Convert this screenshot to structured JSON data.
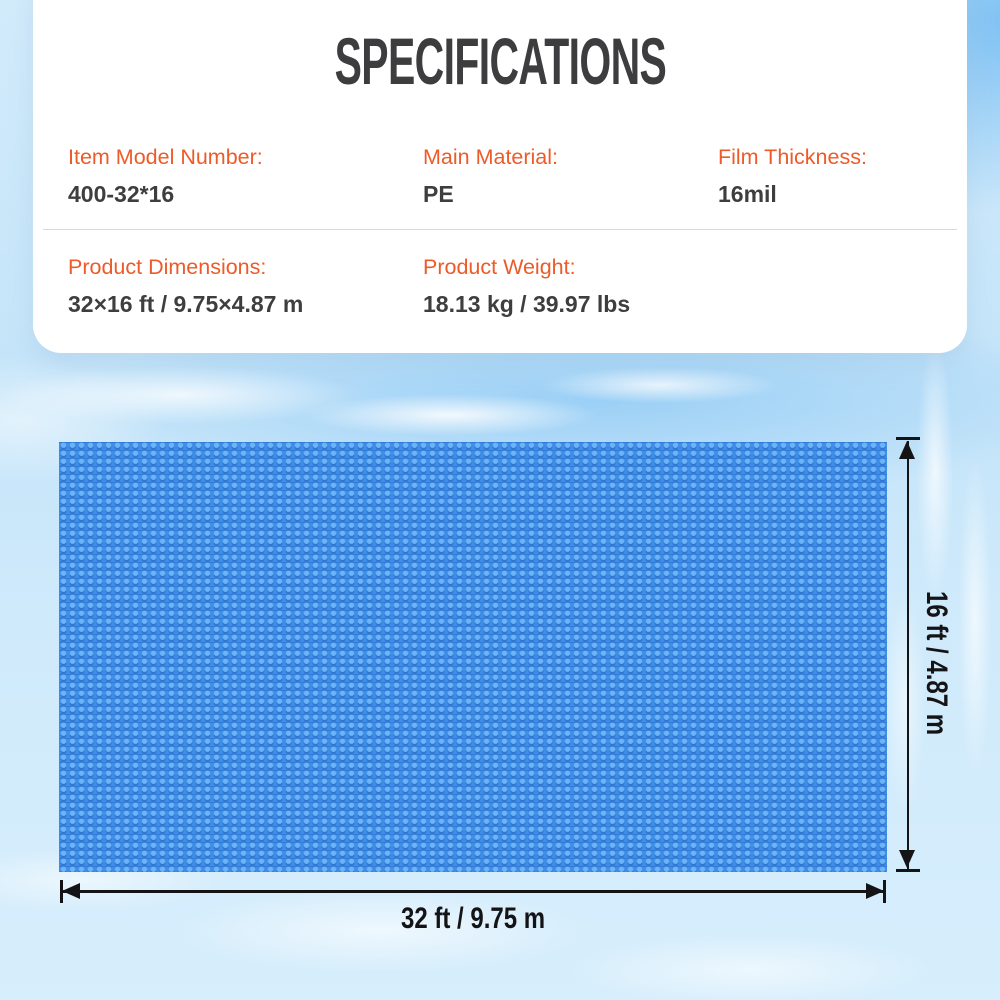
{
  "title": "SPECIFICATIONS",
  "specs": {
    "row1": [
      {
        "label": "Item Model Number:",
        "value": "400-32*16"
      },
      {
        "label": "Main Material:",
        "value": "PE"
      },
      {
        "label": "Film Thickness:",
        "value": "16mil"
      }
    ],
    "row2": [
      {
        "label": "Product Dimensions:",
        "value": "32×16 ft / 9.75×4.87 m"
      },
      {
        "label": "Product Weight:",
        "value": "18.13 kg / 39.97 lbs"
      }
    ]
  },
  "diagram": {
    "height_label": "16 ft / 4.87 m",
    "width_label": "32 ft / 9.75 m"
  },
  "colors": {
    "accent_orange": "#EC5B28",
    "heading_gray": "#3D3D3F",
    "value_gray": "#3E3E41",
    "cover_blue": "#3F8EE9",
    "dimension_black": "#141416",
    "water_light_blue": "#CFE9FB"
  }
}
